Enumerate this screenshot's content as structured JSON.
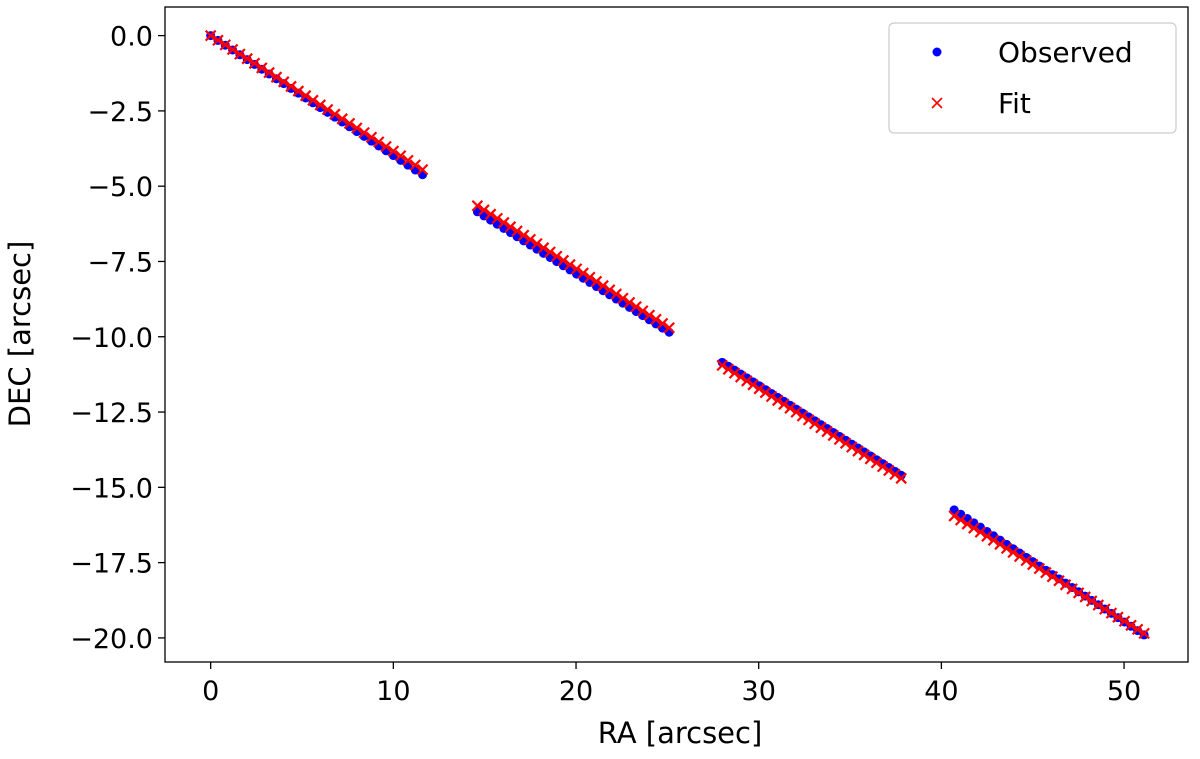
{
  "chart_data": {
    "type": "scatter",
    "title": "",
    "xlabel": "RA [arcsec]",
    "ylabel": "DEC [arcsec]",
    "xlim": [
      -2.5,
      53.5
    ],
    "ylim": [
      -20.8,
      0.95
    ],
    "xticks": [
      0,
      10,
      20,
      30,
      40,
      50
    ],
    "yticks": [
      0.0,
      -2.5,
      -5.0,
      -7.5,
      -10.0,
      -12.5,
      -15.0,
      -17.5,
      -20.0
    ],
    "xtick_labels": [
      "0",
      "10",
      "20",
      "30",
      "40",
      "50"
    ],
    "ytick_labels": [
      "0.0",
      "−2.5",
      "−5.0",
      "−7.5",
      "−10.0",
      "−12.5",
      "−15.0",
      "−17.5",
      "−20.0"
    ],
    "grid": false,
    "legend_position": "upper right",
    "segments": [
      {
        "x_start": 0.0,
        "x_end": 11.6,
        "observed_y_start": 0.0,
        "observed_y_end": -4.62,
        "fit_y_start": 0.0,
        "fit_y_end": -4.45
      },
      {
        "x_start": 14.6,
        "x_end": 25.1,
        "observed_y_start": -5.85,
        "observed_y_end": -9.85,
        "fit_y_start": -5.65,
        "fit_y_end": -9.7
      },
      {
        "x_start": 28.0,
        "x_end": 37.8,
        "observed_y_start": -10.85,
        "observed_y_end": -14.6,
        "fit_y_start": -10.95,
        "fit_y_end": -14.7
      },
      {
        "x_start": 40.7,
        "x_end": 51.1,
        "observed_y_start": -15.75,
        "observed_y_end": -19.9,
        "fit_y_start": -15.95,
        "fit_y_end": -19.85
      }
    ],
    "series": [
      {
        "name": "Observed",
        "marker": "circle",
        "color": "#0000ff"
      },
      {
        "name": "Fit",
        "marker": "x",
        "color": "#ff0000"
      }
    ]
  }
}
